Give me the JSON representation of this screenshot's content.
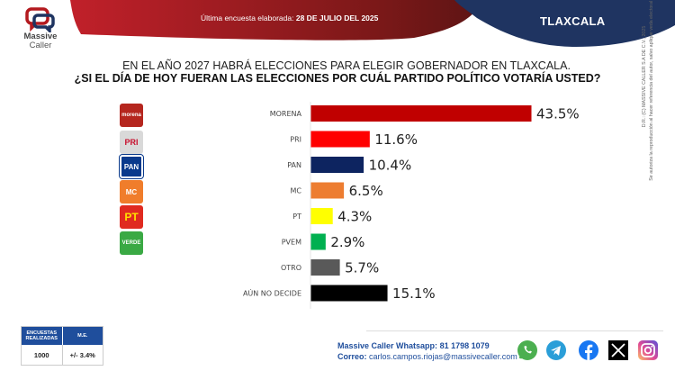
{
  "brand": {
    "line1": "Massive",
    "line2": "Caller"
  },
  "header": {
    "survey_label": "Última encuesta elaborada:",
    "survey_date": "28 DE JULIO DEL 2025",
    "region": "TLAXCALA",
    "colors": {
      "red": "#b3191e",
      "navy": "#1f3461"
    }
  },
  "question": {
    "line1": "EN EL AÑO 2027 HABRÁ ELECCIONES PARA ELEGIR GOBERNADOR EN TLAXCALA.",
    "line2": "¿SI EL DÍA DE HOY FUERAN LAS ELECCIONES POR CUÁL PARTIDO POLÍTICO VOTARÍA USTED?"
  },
  "party_logos": [
    {
      "name": "morena",
      "text": "morena",
      "color": "#b5261e"
    },
    {
      "name": "pri",
      "text": "PRI",
      "color": "#d9d9d9"
    },
    {
      "name": "pan",
      "text": "PAN",
      "color": "#0a3a8c"
    },
    {
      "name": "mc",
      "text": "MC",
      "color": "#f07d2b"
    },
    {
      "name": "pt",
      "text": "PT",
      "color": "#e02a20"
    },
    {
      "name": "pvem",
      "text": "VERDE",
      "color": "#3aa944"
    }
  ],
  "chart_data": {
    "type": "bar",
    "orientation": "horizontal",
    "title": "¿SI EL DÍA DE HOY FUERAN LAS ELECCIONES POR CUÁL PARTIDO POLÍTICO VOTARÍA USTED?",
    "categories": [
      "MORENA",
      "PRI",
      "PAN",
      "MC",
      "PT",
      "PVEM",
      "OTRO",
      "AÚN NO DECIDE"
    ],
    "values": [
      43.5,
      11.6,
      10.4,
      6.5,
      4.3,
      2.9,
      5.7,
      15.1
    ],
    "labels": [
      "43.5%",
      "11.6%",
      "10.4%",
      "6.5%",
      "4.3%",
      "2.9%",
      "5.7%",
      "15.1%"
    ],
    "colors": [
      "#c00000",
      "#ff0000",
      "#0d2460",
      "#ed7d31",
      "#ffff00",
      "#00b050",
      "#595959",
      "#000000"
    ],
    "xlabel": "",
    "ylabel": "",
    "xlim": [
      0,
      45
    ],
    "grid": false,
    "legend": "none"
  },
  "stats": {
    "col1_header": "ENCUESTAS REALIZADAS",
    "col2_header": "M.E.",
    "col1_value": "1000",
    "col2_value": "+/- 3.4%"
  },
  "contact": {
    "whatsapp_label": "Massive Caller Whatsapp:",
    "whatsapp_number": "81 1798 1079",
    "email_label": "Correo:",
    "email": "carlos.campos.riojas@massivecaller.com"
  },
  "social": [
    "whatsapp",
    "telegram",
    "facebook",
    "x",
    "instagram"
  ],
  "legal": {
    "line1": "D.R.: (C) MASSIVE CALLER S.A DE C.V., 2025",
    "line2": "Se autoriza la reproducción al hacer referencia del autor, salvo aplique veda electoral al contenido."
  }
}
